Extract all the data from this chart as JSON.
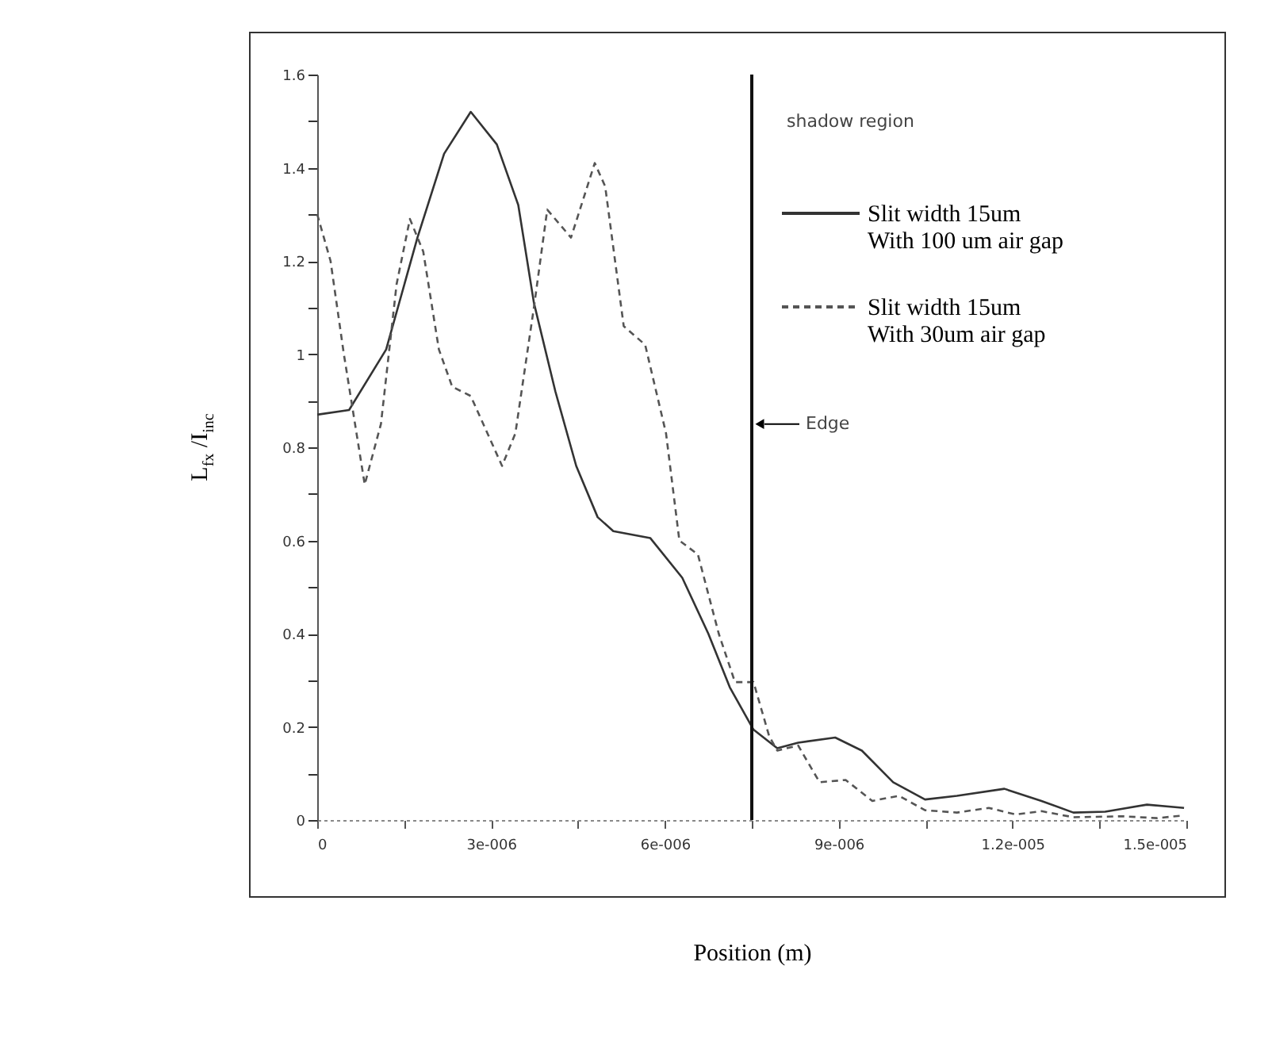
{
  "chart_data": {
    "type": "line",
    "xlabel": "Position (m)",
    "ylabel": "L$_{fx}$ /I$_{inc}$",
    "xlim": [
      0,
      1.5e-05
    ],
    "ylim": [
      0,
      1.6
    ],
    "xticks": [
      0,
      {
        "value": 1.5e-06,
        "label": null
      },
      {
        "value": 3e-06,
        "label": "3e-006"
      },
      {
        "value": 4.5e-06,
        "label": null
      },
      {
        "value": 6e-06,
        "label": "6e-006"
      },
      {
        "value": 7.5e-06,
        "label": null
      },
      {
        "value": 9e-06,
        "label": "9e-006"
      },
      {
        "value": 1.05e-05,
        "label": null
      },
      {
        "value": 1.2e-05,
        "label": "1.2e-005"
      },
      {
        "value": 1.35e-05,
        "label": null
      },
      {
        "value": 1.5e-05,
        "label": "1.5e-005"
      }
    ],
    "yticks": [
      0,
      {
        "value": 0.1,
        "label": null
      },
      0.2,
      {
        "value": 0.3,
        "label": null
      },
      0.4,
      {
        "value": 0.5,
        "label": null
      },
      0.6,
      {
        "value": 0.7,
        "label": null
      },
      0.8,
      {
        "value": 0.9,
        "label": null
      },
      1,
      {
        "value": 1.1,
        "label": null
      },
      1.2,
      {
        "value": 1.3,
        "label": null
      },
      1.4,
      {
        "value": 1.5,
        "label": null
      },
      1.6
    ],
    "legend": "top right",
    "series": [
      {
        "name": "Slit width 15um\nWith 100 um air gap",
        "color": "#333333",
        "line_style": "solid",
        "x": [
          0,
          5.5e-07,
          1.19e-06,
          1.73e-06,
          2.19e-06,
          2.65e-06,
          3.1e-06,
          3.47e-06,
          3.74e-06,
          4.11e-06,
          4.47e-06,
          4.84e-06,
          5.11e-06,
          5.75e-06,
          6.3e-06,
          6.75e-06,
          7.12e-06,
          7.53e-06,
          7.94e-06,
          8.3e-06,
          8.94e-06,
          9.4e-06,
          9.94e-06,
          1.049e-05,
          1.104e-05,
          1.186e-05,
          1.25e-05,
          1.305e-05,
          1.36e-05,
          1.432e-05,
          1.496e-05
        ],
        "values": [
          0.87,
          0.88,
          1.01,
          1.25,
          1.43,
          1.52,
          1.45,
          1.32,
          1.11,
          0.92,
          0.76,
          0.65,
          0.62,
          0.605,
          0.52,
          0.4,
          0.285,
          0.194,
          0.154,
          0.166,
          0.177,
          0.149,
          0.081,
          0.044,
          0.052,
          0.067,
          0.041,
          0.016,
          0.018,
          0.033,
          0.026
        ]
      },
      {
        "name": "Slit width 15um\nWith 30um air gap",
        "color": "#555555",
        "line_style": "dashed",
        "x": [
          0,
          2.3e-07,
          4.6e-07,
          8.2e-07,
          1.1e-06,
          1.37e-06,
          1.6e-06,
          1.83e-06,
          2.1e-06,
          2.33e-06,
          2.65e-06,
          3.19e-06,
          3.42e-06,
          3.74e-06,
          3.97e-06,
          4.38e-06,
          4.79e-06,
          4.97e-06,
          5.29e-06,
          5.66e-06,
          6.02e-06,
          6.25e-06,
          6.57e-06,
          6.93e-06,
          7.21e-06,
          7.53e-06,
          7.8e-06,
          7.94e-06,
          8.3e-06,
          8.67e-06,
          9.12e-06,
          9.58e-06,
          1.004e-05,
          1.049e-05,
          1.104e-05,
          1.159e-05,
          1.205e-05,
          1.25e-05,
          1.305e-05,
          1.39e-05,
          1.45e-05,
          1.496e-05
        ],
        "values": [
          1.3,
          1.2,
          1.0,
          0.72,
          0.85,
          1.15,
          1.29,
          1.22,
          1.01,
          0.93,
          0.91,
          0.76,
          0.83,
          1.1,
          1.31,
          1.25,
          1.41,
          1.36,
          1.06,
          1.02,
          0.83,
          0.6,
          0.57,
          0.4,
          0.296,
          0.296,
          0.18,
          0.149,
          0.16,
          0.081,
          0.086,
          0.041,
          0.052,
          0.021,
          0.016,
          0.026,
          0.012,
          0.019,
          0.006,
          0.008,
          0.004,
          0.01
        ]
      }
    ],
    "ref_lines": [
      {
        "axis": "x",
        "value": 7.5e-06,
        "color": "#111111"
      }
    ],
    "annotations": [
      "shadow region",
      {
        "text": "Edge",
        "x": 7.5e-06,
        "y": 0.85
      }
    ]
  }
}
